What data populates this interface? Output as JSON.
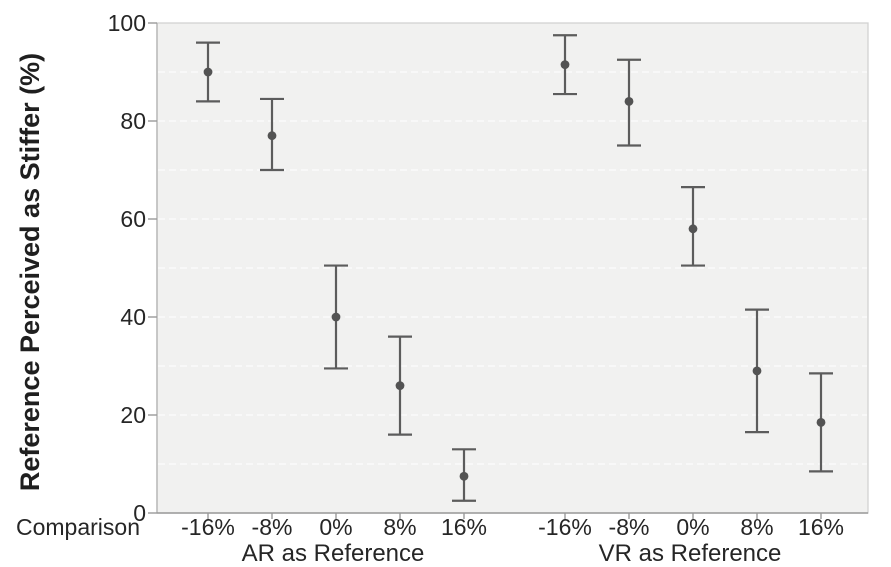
{
  "chart_data": {
    "type": "scatter",
    "title": "",
    "ylabel": "Reference Perceived as Stiffer (%)",
    "xlabel": "Comparison",
    "ylim": [
      0,
      100
    ],
    "yticks": [
      0,
      20,
      40,
      60,
      80,
      100
    ],
    "grid": {
      "horizontal": true,
      "style": "dashed",
      "step": 10
    },
    "legend": "none",
    "categories": [
      "-16%",
      "-8%",
      "0%",
      "8%",
      "16%"
    ],
    "series": [
      {
        "name": "AR as Reference",
        "points": [
          {
            "x": "-16%",
            "mean": 90,
            "lo": 84,
            "hi": 96
          },
          {
            "x": "-8%",
            "mean": 77,
            "lo": 70,
            "hi": 84.5
          },
          {
            "x": "0%",
            "mean": 40,
            "lo": 29.5,
            "hi": 50.5
          },
          {
            "x": "8%",
            "mean": 26,
            "lo": 16,
            "hi": 36
          },
          {
            "x": "16%",
            "mean": 7.5,
            "lo": 2.5,
            "hi": 13
          }
        ]
      },
      {
        "name": "VR as Reference",
        "points": [
          {
            "x": "-16%",
            "mean": 91.5,
            "lo": 85.5,
            "hi": 97.5
          },
          {
            "x": "-8%",
            "mean": 84,
            "lo": 75,
            "hi": 92.5
          },
          {
            "x": "0%",
            "mean": 58,
            "lo": 50.5,
            "hi": 66.5
          },
          {
            "x": "8%",
            "mean": 29,
            "lo": 16.5,
            "hi": 41.5
          },
          {
            "x": "16%",
            "mean": 18.5,
            "lo": 8.5,
            "hi": 28.5
          }
        ]
      }
    ],
    "colors": {
      "marker": "#535353",
      "error_bar": "#5c5c5c",
      "plot_background": "#f1f1f0",
      "gridline": "#fbfbfb",
      "axis_line": "#9a9a9a",
      "plot_border": "#d2d2d2",
      "text": "#262626"
    }
  }
}
